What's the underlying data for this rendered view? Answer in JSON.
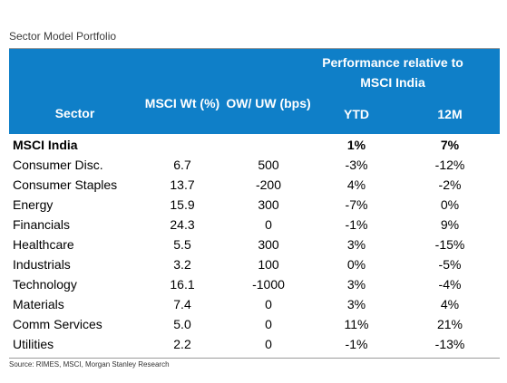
{
  "title": "Sector Model Portfolio",
  "header": {
    "performance": "Performance relative to MSCI India",
    "sector": "Sector",
    "msci_wt": "MSCI Wt (%)",
    "ow_uw": "OW/ UW (bps)",
    "ytd": "YTD",
    "m12": "12M"
  },
  "rows": [
    {
      "sector": "MSCI India",
      "wt": "",
      "ow": "",
      "ytd": "1%",
      "m12": "7%"
    },
    {
      "sector": "Consumer Disc.",
      "wt": "6.7",
      "ow": "500",
      "ytd": "-3%",
      "m12": "-12%"
    },
    {
      "sector": "Consumer Staples",
      "wt": "13.7",
      "ow": "-200",
      "ytd": "4%",
      "m12": "-2%"
    },
    {
      "sector": "Energy",
      "wt": "15.9",
      "ow": "300",
      "ytd": "-7%",
      "m12": "0%"
    },
    {
      "sector": "Financials",
      "wt": "24.3",
      "ow": "0",
      "ytd": "-1%",
      "m12": "9%"
    },
    {
      "sector": "Healthcare",
      "wt": "5.5",
      "ow": "300",
      "ytd": "3%",
      "m12": "-15%"
    },
    {
      "sector": "Industrials",
      "wt": "3.2",
      "ow": "100",
      "ytd": "0%",
      "m12": "-5%"
    },
    {
      "sector": "Technology",
      "wt": "16.1",
      "ow": "-1000",
      "ytd": "3%",
      "m12": "-4%"
    },
    {
      "sector": "Materials",
      "wt": "7.4",
      "ow": "0",
      "ytd": "3%",
      "m12": "4%"
    },
    {
      "sector": "Comm Services",
      "wt": "5.0",
      "ow": "0",
      "ytd": "11%",
      "m12": "21%"
    },
    {
      "sector": "Utilities",
      "wt": "2.2",
      "ow": "0",
      "ytd": "-1%",
      "m12": "-13%"
    }
  ],
  "source": "Source: RIMES, MSCI, Morgan Stanley Research",
  "colors": {
    "header_bg": "#0f7fc8"
  }
}
